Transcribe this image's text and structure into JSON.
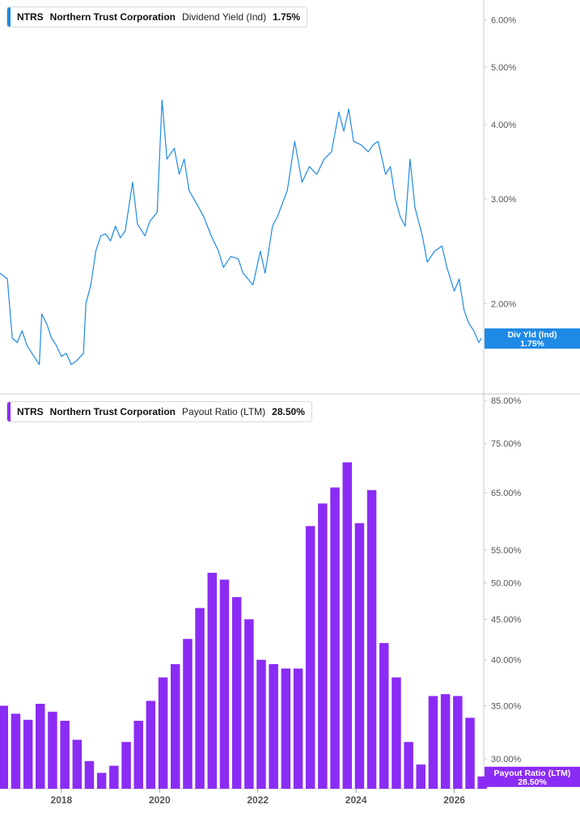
{
  "top_legend": {
    "ticker": "NTRS",
    "company": "Northern Trust Corporation",
    "metric": "Dividend Yield (Ind)",
    "value": "1.75%",
    "color": "#1e8ae6"
  },
  "bottom_legend": {
    "ticker": "NTRS",
    "company": "Northern Trust Corporation",
    "metric": "Payout Ratio (LTM)",
    "value": "28.50%",
    "color": "#8b2cf5"
  },
  "chart_data": [
    {
      "type": "line",
      "scale": "log",
      "y_ticks": [
        "6.00%",
        "5.00%",
        "4.00%",
        "3.00%",
        "2.00%"
      ],
      "ylim": [
        1.45,
        6.4
      ],
      "x_range": [
        2016.75,
        2026.6
      ],
      "series": [
        {
          "name": "Div Yld (Ind)",
          "color": "#1e8ae6",
          "last_value_label": "1.75%",
          "points": [
            [
              2016.75,
              2.25
            ],
            [
              2016.9,
              2.2
            ],
            [
              2017.0,
              1.75
            ],
            [
              2017.1,
              1.72
            ],
            [
              2017.2,
              1.8
            ],
            [
              2017.3,
              1.7
            ],
            [
              2017.4,
              1.65
            ],
            [
              2017.55,
              1.58
            ],
            [
              2017.6,
              1.92
            ],
            [
              2017.7,
              1.85
            ],
            [
              2017.8,
              1.75
            ],
            [
              2017.9,
              1.7
            ],
            [
              2018.0,
              1.63
            ],
            [
              2018.1,
              1.65
            ],
            [
              2018.2,
              1.58
            ],
            [
              2018.3,
              1.6
            ],
            [
              2018.45,
              1.65
            ],
            [
              2018.5,
              2.0
            ],
            [
              2018.6,
              2.15
            ],
            [
              2018.7,
              2.45
            ],
            [
              2018.8,
              2.6
            ],
            [
              2018.9,
              2.62
            ],
            [
              2019.0,
              2.55
            ],
            [
              2019.1,
              2.7
            ],
            [
              2019.2,
              2.58
            ],
            [
              2019.3,
              2.65
            ],
            [
              2019.45,
              3.2
            ],
            [
              2019.55,
              2.72
            ],
            [
              2019.7,
              2.6
            ],
            [
              2019.8,
              2.75
            ],
            [
              2019.95,
              2.85
            ],
            [
              2020.05,
              4.4
            ],
            [
              2020.15,
              3.5
            ],
            [
              2020.3,
              3.65
            ],
            [
              2020.4,
              3.3
            ],
            [
              2020.5,
              3.5
            ],
            [
              2020.6,
              3.1
            ],
            [
              2020.75,
              2.95
            ],
            [
              2020.9,
              2.8
            ],
            [
              2021.05,
              2.6
            ],
            [
              2021.2,
              2.45
            ],
            [
              2021.3,
              2.3
            ],
            [
              2021.45,
              2.4
            ],
            [
              2021.6,
              2.38
            ],
            [
              2021.7,
              2.25
            ],
            [
              2021.8,
              2.2
            ],
            [
              2021.9,
              2.15
            ],
            [
              2022.05,
              2.45
            ],
            [
              2022.15,
              2.25
            ],
            [
              2022.3,
              2.7
            ],
            [
              2022.4,
              2.8
            ],
            [
              2022.6,
              3.1
            ],
            [
              2022.75,
              3.75
            ],
            [
              2022.9,
              3.2
            ],
            [
              2023.05,
              3.4
            ],
            [
              2023.2,
              3.3
            ],
            [
              2023.35,
              3.5
            ],
            [
              2023.5,
              3.6
            ],
            [
              2023.65,
              4.2
            ],
            [
              2023.75,
              3.9
            ],
            [
              2023.85,
              4.25
            ],
            [
              2023.95,
              3.75
            ],
            [
              2024.1,
              3.7
            ],
            [
              2024.25,
              3.6
            ],
            [
              2024.35,
              3.7
            ],
            [
              2024.45,
              3.75
            ],
            [
              2024.6,
              3.3
            ],
            [
              2024.7,
              3.4
            ],
            [
              2024.8,
              3.0
            ],
            [
              2024.9,
              2.8
            ],
            [
              2025.0,
              2.7
            ],
            [
              2025.1,
              3.5
            ],
            [
              2025.2,
              2.9
            ],
            [
              2025.35,
              2.6
            ],
            [
              2025.45,
              2.35
            ],
            [
              2025.6,
              2.45
            ],
            [
              2025.75,
              2.5
            ],
            [
              2025.85,
              2.3
            ],
            [
              2026.0,
              2.1
            ],
            [
              2026.1,
              2.2
            ],
            [
              2026.2,
              1.95
            ],
            [
              2026.3,
              1.85
            ],
            [
              2026.4,
              1.8
            ],
            [
              2026.5,
              1.72
            ],
            [
              2026.55,
              1.75
            ]
          ]
        }
      ]
    },
    {
      "type": "bar",
      "scale": "log",
      "y_ticks": [
        "85.00%",
        "75.00%",
        "65.00%",
        "55.00%",
        "50.00%",
        "45.00%",
        "40.00%",
        "35.00%",
        "30.00%"
      ],
      "ylim": [
        27.5,
        86
      ],
      "x_range": [
        2016.75,
        2026.6
      ],
      "x_ticks": [
        "2018",
        "2020",
        "2022",
        "2024",
        "2026"
      ],
      "series": [
        {
          "name": "Payout Ratio (LTM)",
          "color": "#8b2cf5",
          "last_value_label": "28.50%",
          "x": [
            2016.82,
            2017.07,
            2017.32,
            2017.57,
            2017.82,
            2018.07,
            2018.32,
            2018.57,
            2018.82,
            2019.07,
            2019.32,
            2019.57,
            2019.82,
            2020.07,
            2020.32,
            2020.57,
            2020.82,
            2021.07,
            2021.32,
            2021.57,
            2021.82,
            2022.07,
            2022.32,
            2022.57,
            2022.82,
            2023.07,
            2023.32,
            2023.57,
            2023.82,
            2024.07,
            2024.32,
            2024.57,
            2024.82,
            2025.07,
            2025.32,
            2025.57,
            2025.82,
            2026.07,
            2026.32,
            2026.57
          ],
          "values": [
            35.0,
            34.2,
            33.6,
            35.2,
            34.4,
            33.5,
            31.7,
            29.8,
            28.8,
            29.4,
            31.5,
            33.5,
            35.5,
            38.0,
            39.5,
            42.5,
            46.5,
            51.5,
            50.5,
            48.0,
            45.0,
            40.0,
            39.5,
            39.0,
            39.0,
            59.0,
            63.0,
            66.0,
            71.0,
            59.5,
            65.5,
            42.0,
            38.0,
            31.5,
            29.5,
            36.0,
            36.2,
            36.0,
            33.8,
            28.5
          ]
        }
      ]
    }
  ]
}
